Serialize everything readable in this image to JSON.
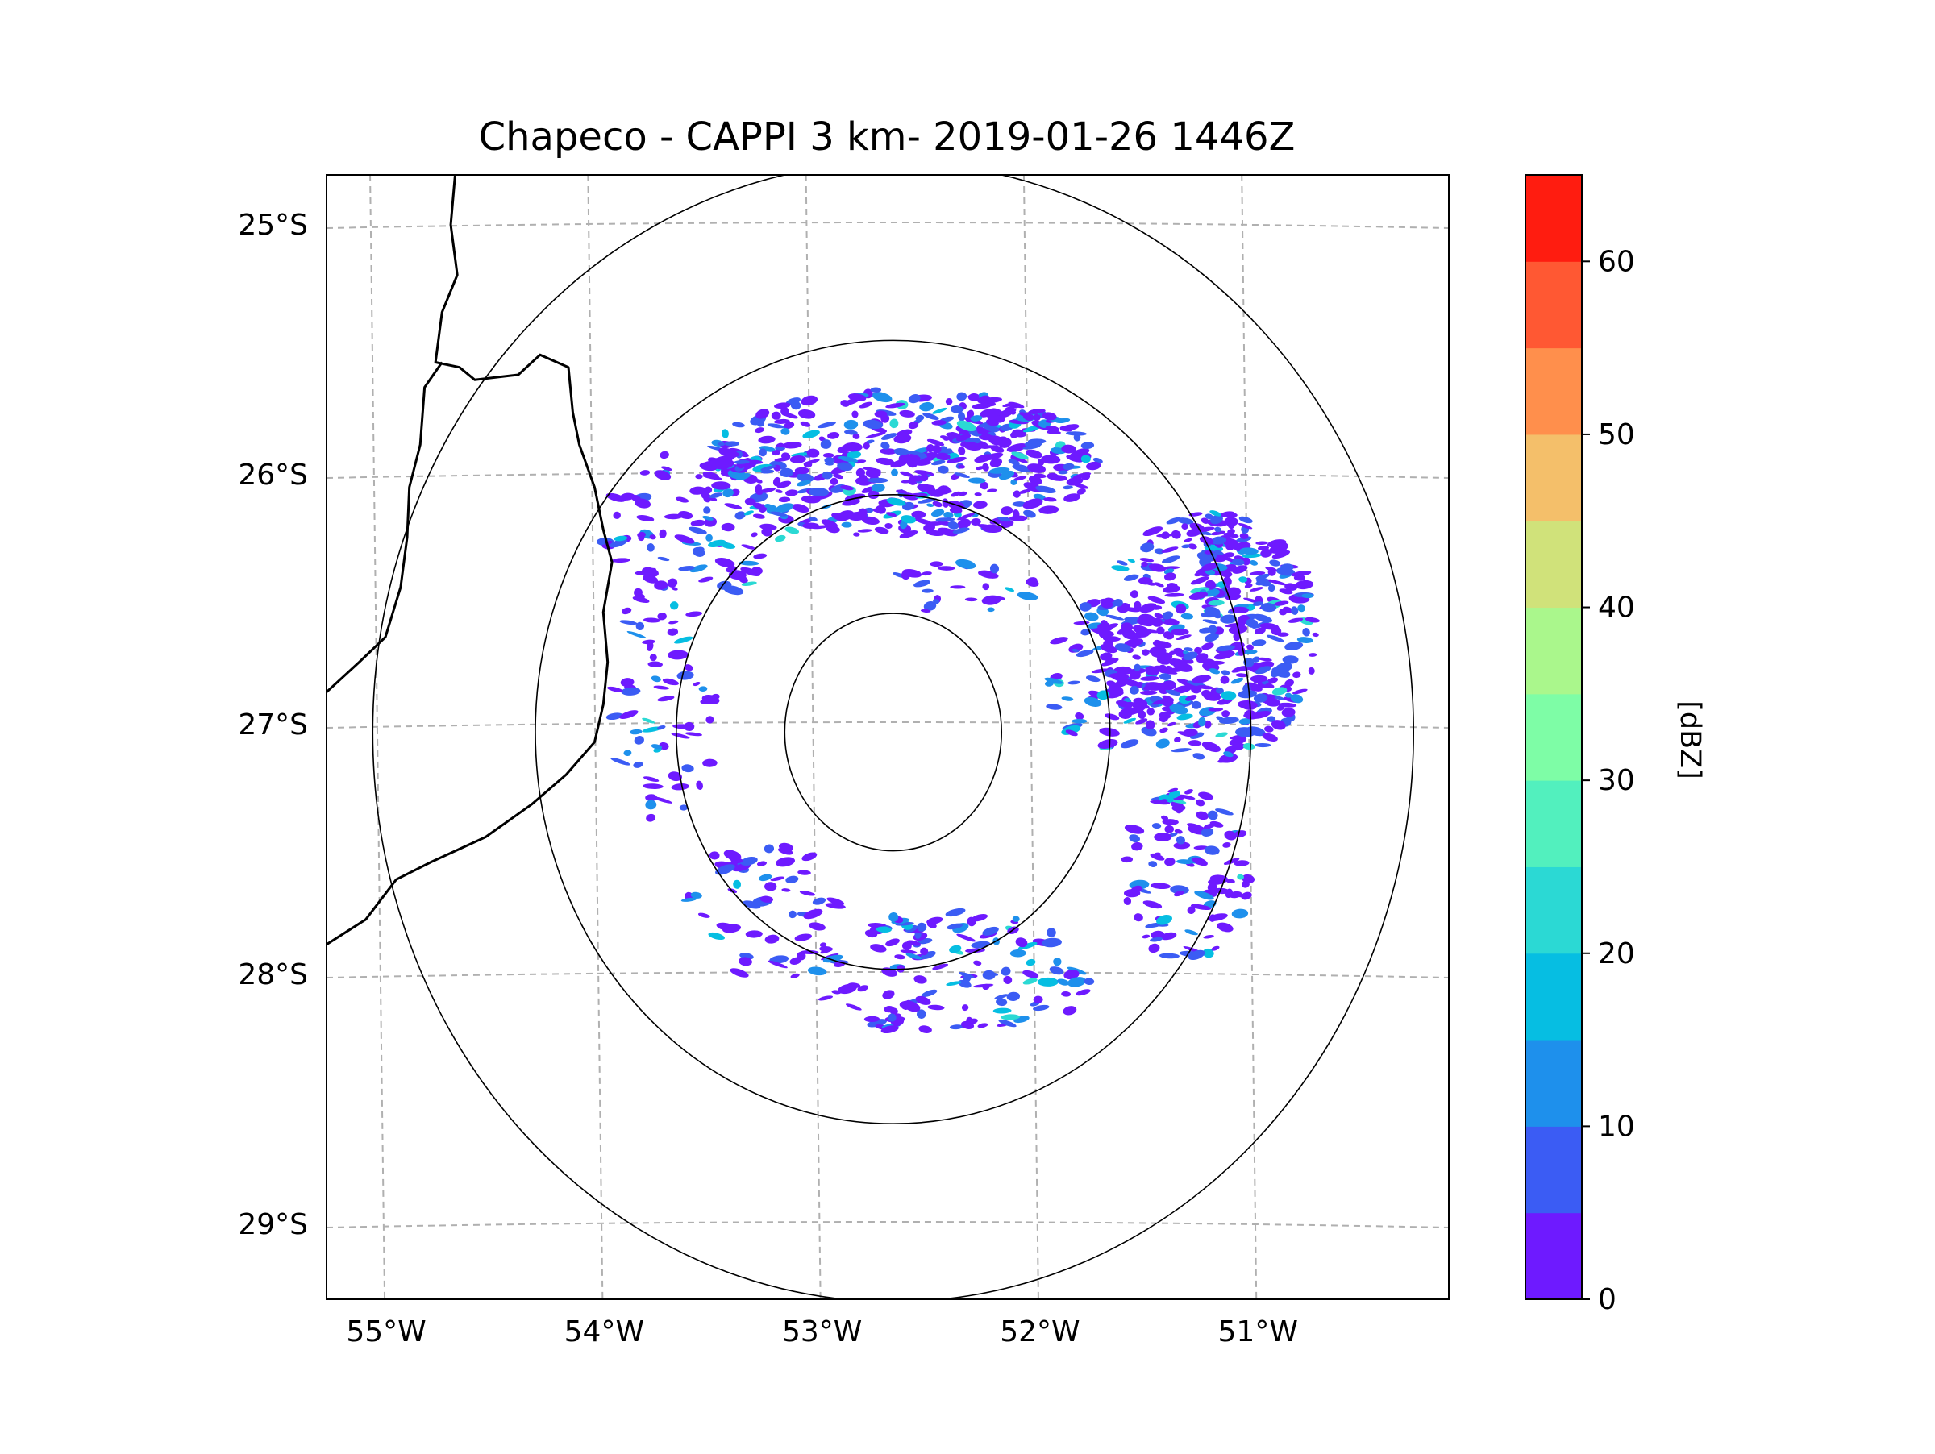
{
  "chart_data": {
    "type": "heatmap",
    "title": "Chapeco - CAPPI 3 km- 2019-01-26 1446Z",
    "projection": "radar CAPPI, lat/lon gridlines",
    "xlim": [
      -55.2,
      -50.05
    ],
    "ylim": [
      -29.3,
      -24.8
    ],
    "x_ticks": [
      -55,
      -54,
      -53,
      -52,
      -51
    ],
    "x_tick_labels": [
      "55°W",
      "54°W",
      "53°W",
      "52°W",
      "51°W"
    ],
    "y_ticks": [
      -25,
      -26,
      -27,
      -28,
      -29
    ],
    "y_tick_labels": [
      "25°S",
      "26°S",
      "27°S",
      "28°S",
      "29°S"
    ],
    "grid": true,
    "radar_center": {
      "lon": -52.6,
      "lat": -27.03
    },
    "range_rings_deg": [
      0.5,
      1.0,
      1.65,
      2.4
    ],
    "coastline_points": [
      [
        -54.61,
        -24.8
      ],
      [
        -54.63,
        -25.0
      ],
      [
        -54.6,
        -25.2
      ],
      [
        -54.67,
        -25.35
      ],
      [
        -54.7,
        -25.55
      ],
      [
        -54.59,
        -25.57
      ],
      [
        -54.52,
        -25.62
      ],
      [
        -54.32,
        -25.6
      ],
      [
        -54.22,
        -25.52
      ],
      [
        -54.09,
        -25.57
      ],
      [
        -54.07,
        -25.75
      ],
      [
        -54.04,
        -25.88
      ],
      [
        -53.97,
        -26.05
      ],
      [
        -53.93,
        -26.22
      ],
      [
        -53.89,
        -26.35
      ],
      [
        -53.93,
        -26.55
      ],
      [
        -53.91,
        -26.75
      ],
      [
        -53.93,
        -26.92
      ],
      [
        -53.97,
        -27.07
      ],
      [
        -54.1,
        -27.2
      ],
      [
        -54.26,
        -27.32
      ],
      [
        -54.47,
        -27.45
      ],
      [
        -54.72,
        -27.55
      ],
      [
        -54.88,
        -27.62
      ],
      [
        -55.02,
        -27.78
      ],
      [
        -55.2,
        -27.88
      ]
    ],
    "border_points": [
      [
        -54.67,
        -25.55
      ],
      [
        -54.75,
        -25.65
      ],
      [
        -54.77,
        -25.88
      ],
      [
        -54.82,
        -26.05
      ],
      [
        -54.83,
        -26.25
      ],
      [
        -54.86,
        -26.45
      ],
      [
        -54.93,
        -26.65
      ],
      [
        -55.05,
        -26.75
      ],
      [
        -55.2,
        -26.87
      ]
    ],
    "echo_regions": [
      {
        "name": "north-band",
        "lon": -52.55,
        "lat": -25.95,
        "rlon": 0.9,
        "rlat": 0.3,
        "density": 1.0
      },
      {
        "name": "northwest-arc",
        "lon": -53.5,
        "lat": -26.2,
        "rlon": 0.45,
        "rlat": 0.3,
        "density": 0.45
      },
      {
        "name": "east-cluster",
        "lon": -51.15,
        "lat": -26.65,
        "rlon": 0.5,
        "rlat": 0.5,
        "density": 1.0
      },
      {
        "name": "east-inner",
        "lon": -51.6,
        "lat": -26.8,
        "rlon": 0.3,
        "rlat": 0.3,
        "density": 0.55
      },
      {
        "name": "southeast-arc",
        "lon": -51.25,
        "lat": -27.6,
        "rlon": 0.3,
        "rlat": 0.35,
        "density": 0.55
      },
      {
        "name": "south-arc",
        "lon": -52.35,
        "lat": -28.0,
        "rlon": 0.7,
        "rlat": 0.25,
        "density": 0.45
      },
      {
        "name": "southwest-arc",
        "lon": -53.2,
        "lat": -27.75,
        "rlon": 0.35,
        "rlat": 0.3,
        "density": 0.3
      },
      {
        "name": "west-arc",
        "lon": -53.65,
        "lat": -26.9,
        "rlon": 0.25,
        "rlat": 0.5,
        "density": 0.3
      },
      {
        "name": "inner-ring-north",
        "lon": -52.35,
        "lat": -26.45,
        "rlon": 0.45,
        "rlat": 0.1,
        "density": 0.35
      }
    ],
    "colorbar": {
      "label": "[dBZ]",
      "vmin": 0,
      "vmax": 65,
      "tick_values": [
        0,
        10,
        20,
        30,
        40,
        50,
        60
      ],
      "tick_labels": [
        "0",
        "10",
        "20",
        "30",
        "40",
        "50",
        "60"
      ],
      "levels": [
        0,
        5,
        10,
        15,
        20,
        25,
        30,
        35,
        40,
        45,
        50,
        55,
        60,
        65
      ],
      "colors": [
        "#6e1aff",
        "#3b5cf4",
        "#1e90ec",
        "#06bee2",
        "#2bd9d4",
        "#52f0be",
        "#7efda6",
        "#aaf78c",
        "#d0e27a",
        "#f4bf6a",
        "#ff8f4c",
        "#ff5833",
        "#ff1c10"
      ]
    }
  }
}
